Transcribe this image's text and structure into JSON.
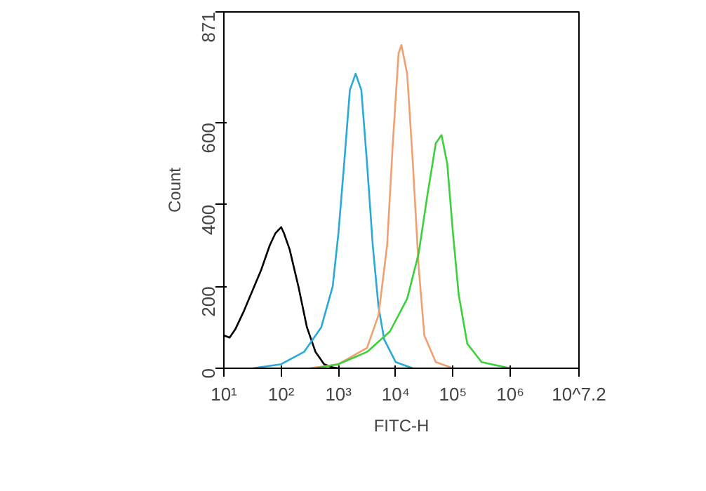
{
  "chart_data": {
    "type": "line",
    "xlabel": "FITC-H",
    "ylabel": "Count",
    "log": "x",
    "grid": false,
    "marker": "none",
    "line_style": "solid",
    "xlim": [
      10,
      15848932
    ],
    "xticks": [
      {
        "value": 10,
        "label": "10¹"
      },
      {
        "value": 100,
        "label": "10²"
      },
      {
        "value": 1000,
        "label": "10³"
      },
      {
        "value": 10000,
        "label": "10⁴"
      },
      {
        "value": 100000,
        "label": "10⁵"
      },
      {
        "value": 1000000,
        "label": "10⁶"
      },
      {
        "value": 15848932,
        "label": "10^7.2"
      }
    ],
    "ylim": [
      0,
      871
    ],
    "yticks": [
      0,
      200,
      400,
      600,
      871
    ],
    "series": [
      {
        "color": "#000000",
        "x": [
          10,
          12.6,
          15.8,
          22.4,
          31.6,
          44.7,
          63.1,
          79.4,
          100,
          112,
          141,
          200,
          282,
          398,
          562,
          794,
          1000
        ],
        "values": [
          80,
          75,
          95,
          140,
          190,
          240,
          300,
          330,
          345,
          330,
          290,
          200,
          100,
          40,
          10,
          2,
          0
        ]
      },
      {
        "color": "#29a9d8",
        "x": [
          32,
          100,
          251,
          501,
          794,
          1000,
          1259,
          1585,
          1995,
          2512,
          3162,
          3981,
          5012,
          6310,
          10000,
          19953
        ],
        "values": [
          0,
          10,
          40,
          100,
          200,
          330,
          500,
          680,
          720,
          680,
          500,
          300,
          150,
          70,
          15,
          0
        ]
      },
      {
        "color": "#f0a070",
        "x": [
          316,
          1000,
          3162,
          5012,
          7079,
          8913,
          11220,
          12589,
          15849,
          19953,
          25119,
          31623,
          50119,
          100000
        ],
        "values": [
          0,
          10,
          50,
          130,
          300,
          550,
          770,
          790,
          720,
          500,
          250,
          80,
          15,
          0
        ]
      },
      {
        "color": "#3ad13a",
        "x": [
          398,
          1000,
          3162,
          7943,
          15849,
          25119,
          35481,
          50119,
          63096,
          79433,
          100000,
          125893,
          177828,
          316228,
          1000000
        ],
        "values": [
          0,
          10,
          40,
          90,
          170,
          280,
          420,
          550,
          570,
          500,
          330,
          180,
          60,
          15,
          0
        ]
      }
    ]
  }
}
